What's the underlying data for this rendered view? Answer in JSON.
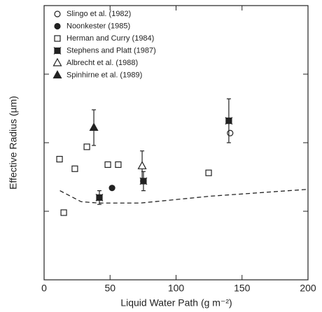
{
  "chart_data": {
    "type": "scatter",
    "xlabel": "Liquid Water Path (g m⁻²)",
    "ylabel": "Effective Radius (µm)",
    "xlim": [
      0,
      200
    ],
    "xticks": [
      0,
      50,
      100,
      150,
      200
    ],
    "ylim": [
      0,
      20
    ],
    "yticks": [
      5,
      10,
      15
    ],
    "series": [
      {
        "name": "Slingo et al. (1982)",
        "marker": "circle-open",
        "color": "#222222",
        "x": [
          141
        ],
        "values": [
          10.7
        ],
        "errors": [
          null
        ]
      },
      {
        "name": "Noonkester (1985)",
        "marker": "circle-filled",
        "color": "#222222",
        "x": [
          51.5
        ],
        "values": [
          6.7
        ],
        "errors": [
          null
        ]
      },
      {
        "name": "Herman and Curry (1984)",
        "marker": "square-open",
        "color": "#222222",
        "x": [
          11.7,
          14.9,
          23.3,
          32.4,
          48.3,
          56.2,
          124.7
        ],
        "values": [
          8.8,
          4.9,
          8.1,
          9.7,
          8.4,
          8.4,
          7.8
        ],
        "errors": [
          null,
          null,
          null,
          null,
          null,
          null,
          null
        ]
      },
      {
        "name": "Stephens and Platt (1987)",
        "marker": "square-x",
        "color": "#222222",
        "x": [
          41.9,
          75.3,
          140
        ],
        "values": [
          6.0,
          7.2,
          11.6
        ],
        "errors": [
          0.5,
          0.7,
          1.6
        ]
      },
      {
        "name": "Albrecht et al. (1988)",
        "marker": "triangle-open",
        "color": "#222222",
        "x": [
          74.3
        ],
        "values": [
          8.3
        ],
        "errors": [
          1.1
        ]
      },
      {
        "name": "Spinhirne et al. (1989)",
        "marker": "triangle-filled",
        "color": "#222222",
        "x": [
          37.7
        ],
        "values": [
          11.1
        ],
        "errors": [
          1.3
        ]
      }
    ],
    "curve": {
      "x": [
        12,
        28,
        41,
        73,
        126,
        200
      ],
      "values": [
        6.5,
        5.7,
        5.6,
        5.6,
        6.1,
        6.6
      ],
      "color": "#222222",
      "dashed": true
    }
  }
}
